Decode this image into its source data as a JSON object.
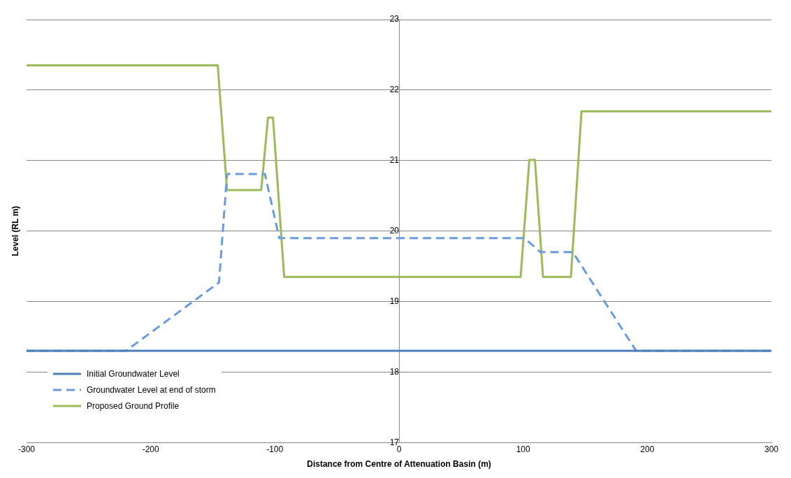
{
  "chart_data": {
    "type": "line",
    "xlabel": "Distance from Centre of Attenuation Basin (m)",
    "ylabel": "Level (RL m)",
    "xlim": [
      -300,
      300
    ],
    "xticks": [
      -300,
      -200,
      -100,
      0,
      100,
      200,
      300
    ],
    "ylim": [
      17,
      23
    ],
    "yticks": [
      17,
      18,
      19,
      20,
      21,
      22,
      23
    ],
    "grid": "y",
    "legend": "bottom left",
    "marker": "none",
    "series": [
      {
        "name": "Initial Groundwater Level",
        "color": "#4a7ebb",
        "line_style": "solid",
        "x": [
          -300,
          300
        ],
        "values": [
          18.3,
          18.3
        ]
      },
      {
        "name": "Groundwater Level at end of storm",
        "color": "#6a9be0",
        "line_style": "dashed",
        "x": [
          -300,
          -220,
          -145,
          -138.5,
          -108,
          -96.5,
          101,
          114,
          140,
          191,
          300
        ],
        "values": [
          18.3,
          18.3,
          19.27,
          20.81,
          20.81,
          19.9,
          19.9,
          19.7,
          19.7,
          18.3,
          18.3
        ]
      },
      {
        "name": "Proposed Ground Profile",
        "color": "#9bbb59",
        "line_style": "solid",
        "x": [
          -300,
          -146,
          -138.5,
          -111,
          -105.5,
          -101.5,
          -92.5,
          98,
          105,
          109.5,
          116,
          138.5,
          147,
          300
        ],
        "values": [
          22.35,
          22.35,
          20.58,
          20.58,
          21.61,
          21.61,
          19.35,
          19.35,
          21.01,
          21.01,
          19.35,
          19.35,
          21.7,
          21.7
        ]
      }
    ]
  }
}
